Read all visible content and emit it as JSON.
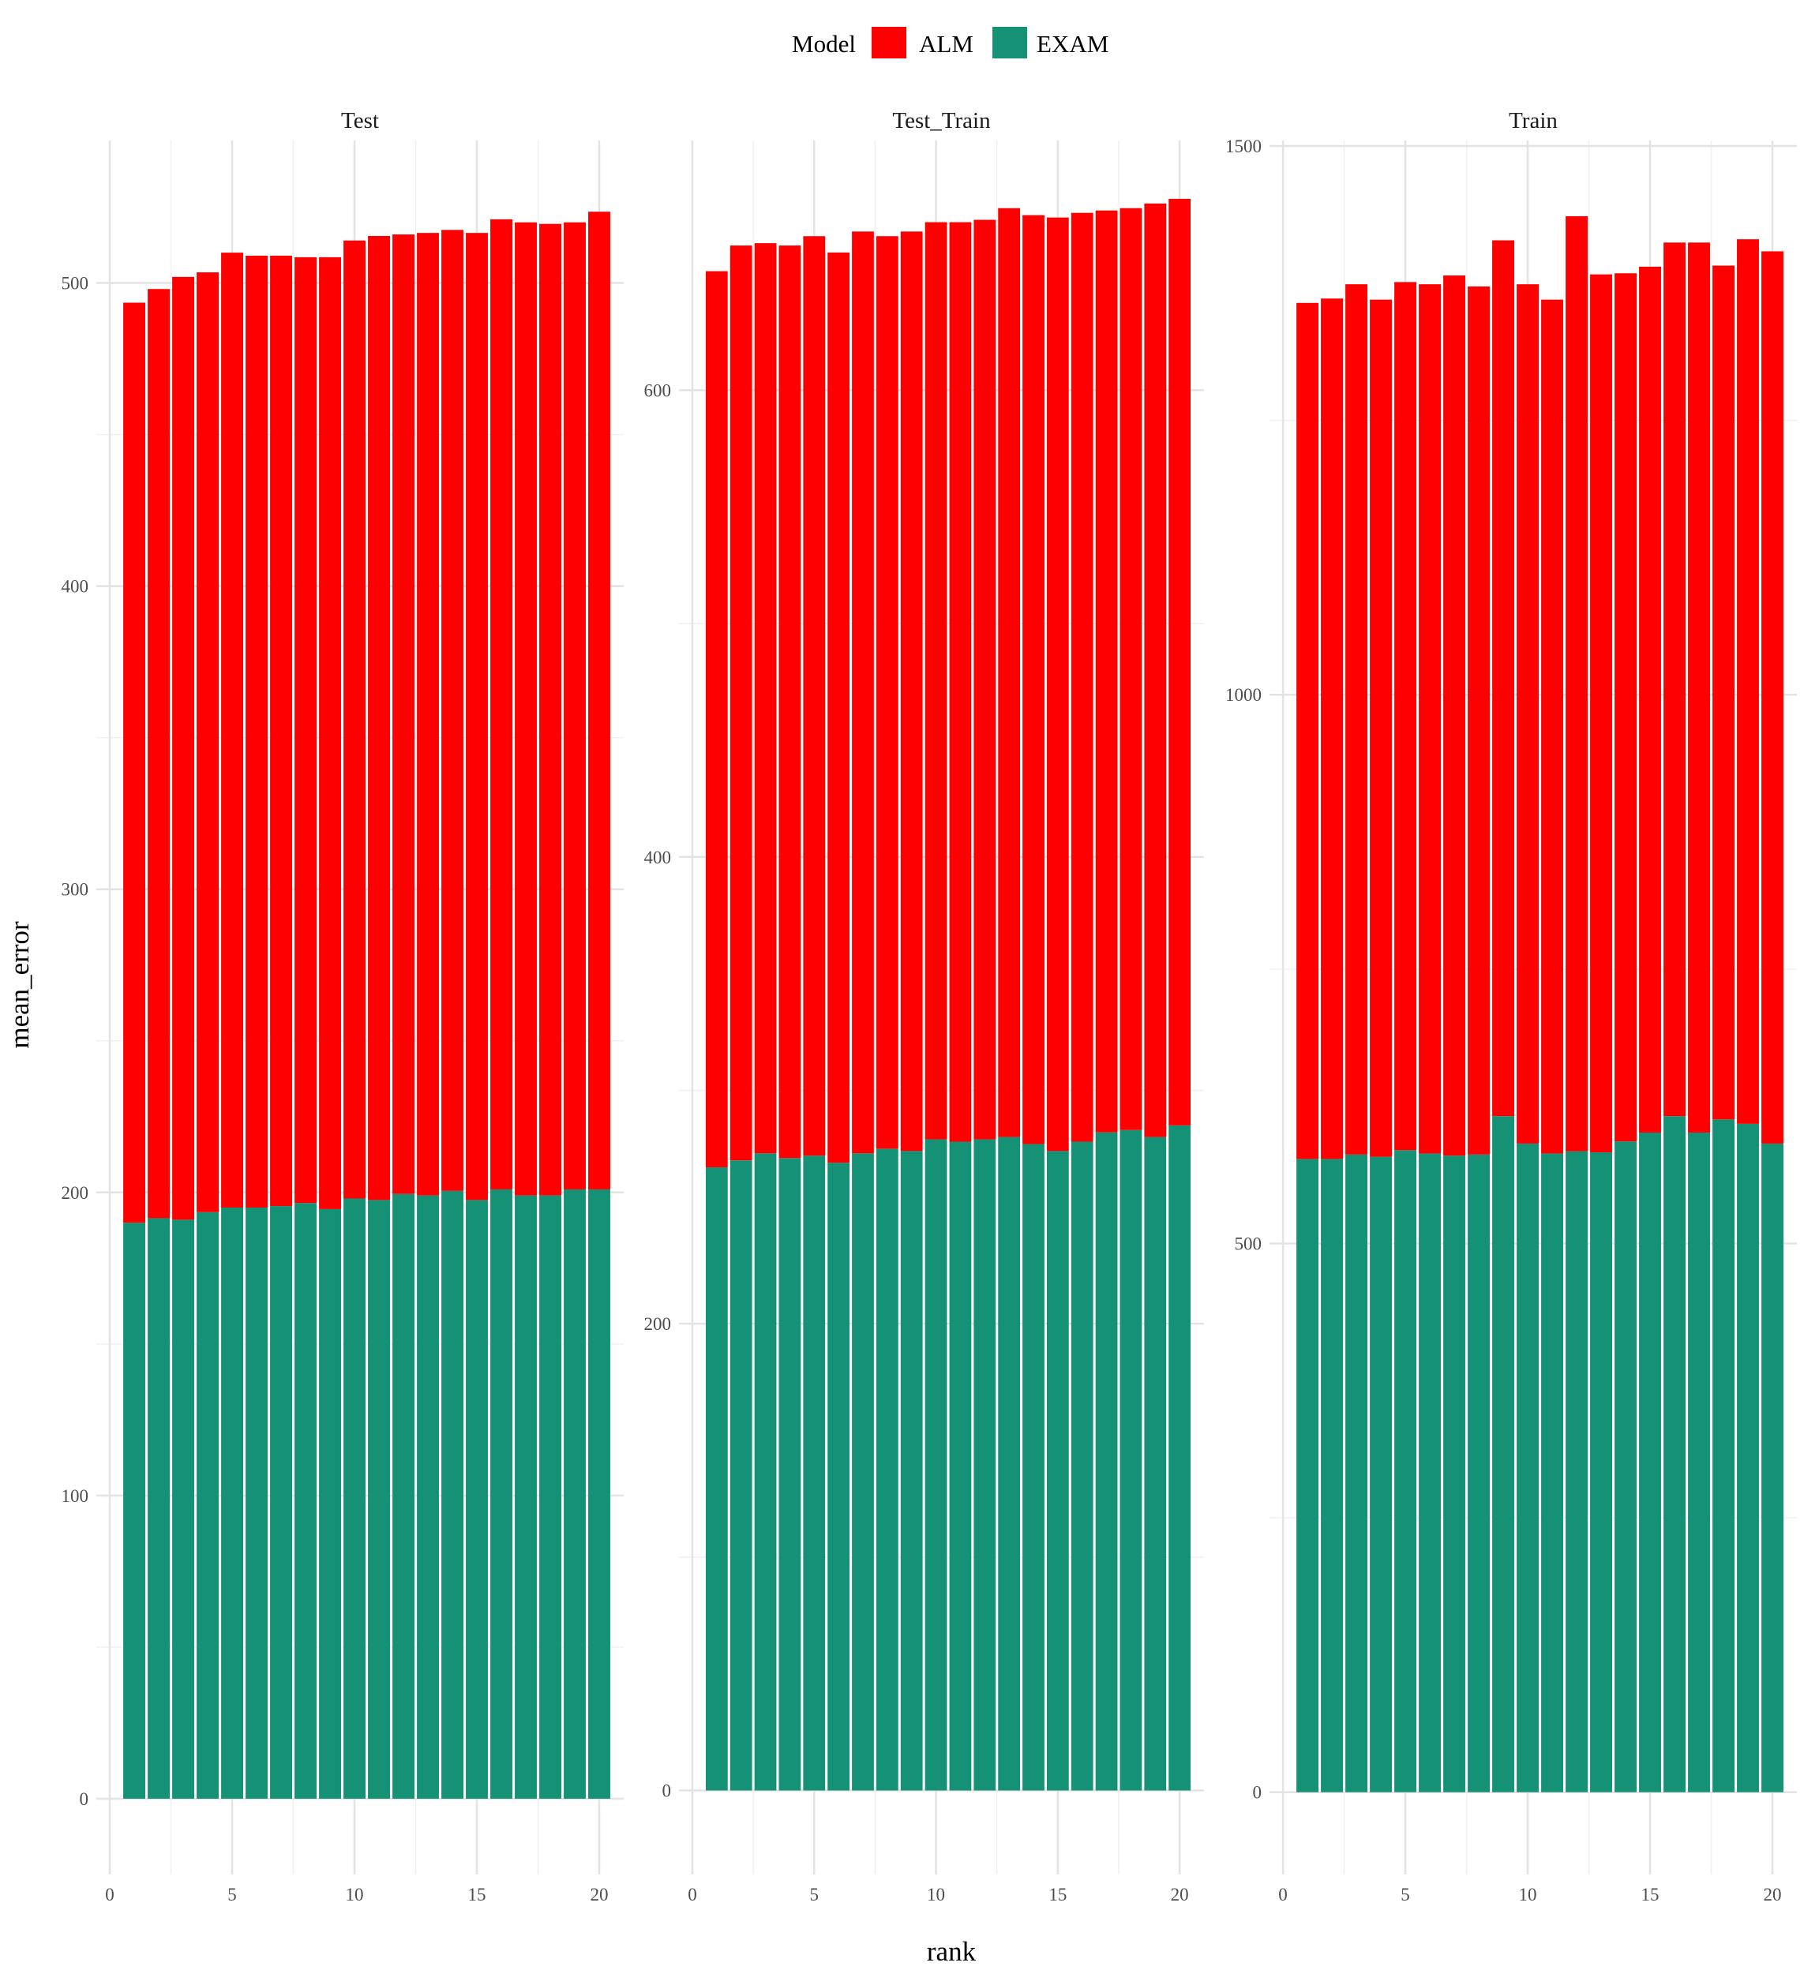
{
  "legend": {
    "title": "Model",
    "items": [
      {
        "label": "ALM",
        "color": "#FF0000"
      },
      {
        "label": "EXAM",
        "color": "#159276"
      }
    ]
  },
  "chart_data": {
    "type": "bar",
    "stacked": true,
    "xlabel": "rank",
    "ylabel": "mean_error",
    "grid": true,
    "legend_position": "top",
    "x": [
      1,
      2,
      3,
      4,
      5,
      6,
      7,
      8,
      9,
      10,
      11,
      12,
      13,
      14,
      15,
      16,
      17,
      18,
      19,
      20
    ],
    "x_ticks": [
      0,
      5,
      10,
      15,
      20
    ],
    "facets": [
      {
        "title": "Test",
        "ylim": [
          -25,
          547
        ],
        "y_ticks": [
          0,
          100,
          200,
          300,
          400,
          500
        ],
        "series": [
          {
            "name": "EXAM",
            "values": [
              190,
              191.5,
              191,
              193.5,
              195,
              195,
              195.5,
              196.5,
              194.5,
              198,
              197.5,
              199.5,
              199,
              200.5,
              197.5,
              201,
              199,
              199,
              201,
              201
            ]
          },
          {
            "name": "ALM",
            "values": [
              303.5,
              306.5,
              311,
              310,
              315,
              314,
              313.5,
              312,
              314,
              316,
              318,
              316.5,
              317.5,
              317,
              319,
              320,
              321,
              320.5,
              319,
              322.5
            ]
          }
        ]
      },
      {
        "title": "Test_Train",
        "ylim": [
          -36,
          707
        ],
        "y_ticks": [
          0,
          200,
          400,
          600
        ],
        "series": [
          {
            "name": "EXAM",
            "values": [
              267,
              270,
              273,
              271,
              272,
              269,
              273,
              275,
              274,
              279,
              278,
              279,
              280,
              277,
              274,
              278,
              282,
              283,
              280,
              285
            ]
          },
          {
            "name": "ALM",
            "values": [
              384,
              392,
              390,
              391,
              394,
              390,
              395,
              391,
              394,
              393,
              394,
              394,
              398,
              398,
              400,
              398,
              395,
              395,
              400,
              397
            ]
          }
        ]
      },
      {
        "title": "Train",
        "ylim": [
          -75,
          1505
        ],
        "y_ticks": [
          0,
          500,
          1000,
          1500
        ],
        "series": [
          {
            "name": "EXAM",
            "values": [
              577,
              577,
              581,
              579,
              585,
              582,
              580,
              581,
              616,
              591,
              582,
              584,
              583,
              593,
              601,
              616,
              601,
              613,
              609,
              591
            ]
          },
          {
            "name": "ALM",
            "values": [
              780,
              784,
              793,
              781,
              791,
              792,
              802,
              791,
              798,
              783,
              778,
              852,
              800,
              791,
              789,
              796,
              811,
              778,
              806,
              813
            ]
          }
        ]
      }
    ]
  }
}
